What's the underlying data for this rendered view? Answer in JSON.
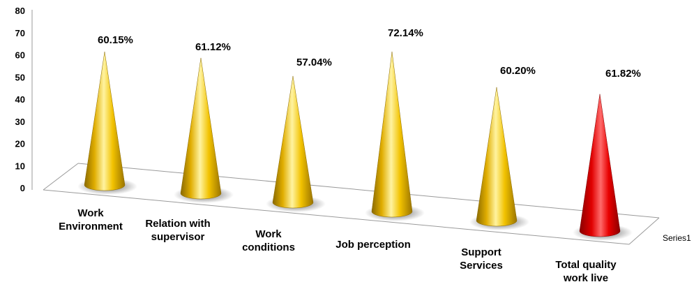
{
  "chart_data": {
    "type": "bar",
    "style": "3d-cone",
    "categories": [
      [
        "Work",
        "Environment"
      ],
      [
        "Relation with",
        "supervisor"
      ],
      [
        "Work",
        "conditions"
      ],
      [
        "Job perception"
      ],
      [
        "Support",
        "Services"
      ],
      [
        "Total quality",
        "work live"
      ]
    ],
    "values": [
      60.15,
      61.12,
      57.04,
      72.14,
      60.2,
      61.82
    ],
    "data_labels": [
      "60.15%",
      "61.12%",
      "57.04%",
      "72.14%",
      "60.20%",
      "61.82%"
    ],
    "series": [
      {
        "name": "Series1",
        "values": [
          60.15,
          61.12,
          57.04,
          72.14,
          60.2,
          61.82
        ]
      }
    ],
    "y_ticks": [
      "0",
      "10",
      "20",
      "30",
      "40",
      "50",
      "60",
      "70",
      "80"
    ],
    "ylim": [
      0,
      80
    ],
    "colors": {
      "default": "#f2c200",
      "highlight": "#e80000",
      "highlight_index": 5
    },
    "grid": false,
    "legend": "none"
  }
}
